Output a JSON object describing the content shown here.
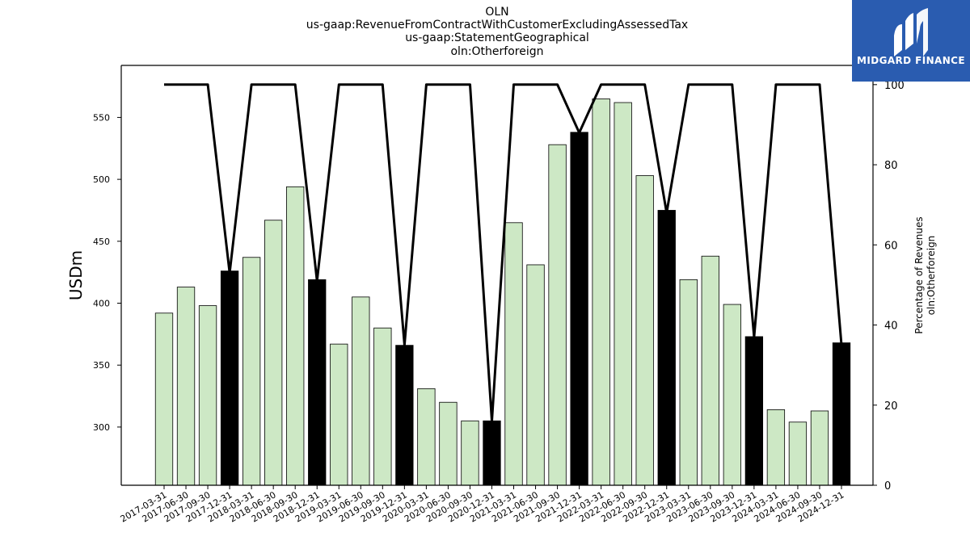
{
  "title": {
    "line1": "OLN",
    "line2": "us-gaap:RevenueFromContractWithCustomerExcludingAssessedTax",
    "line3": "us-gaap:StatementGeographical",
    "line4": "oln:Otherforeign"
  },
  "logo": {
    "text": "MIDGARD FINANCE",
    "color": "#2a5cb0"
  },
  "chart_data": {
    "type": "bar",
    "categories": [
      "2017-03-31",
      "2017-06-30",
      "2017-09-30",
      "2017-12-31",
      "2018-03-31",
      "2018-06-30",
      "2018-09-30",
      "2018-12-31",
      "2019-03-31",
      "2019-06-30",
      "2019-09-30",
      "2019-12-31",
      "2020-03-31",
      "2020-06-30",
      "2020-09-30",
      "2020-12-31",
      "2021-03-31",
      "2021-06-30",
      "2021-09-30",
      "2021-12-31",
      "2022-03-31",
      "2022-06-30",
      "2022-09-30",
      "2022-12-31",
      "2023-03-31",
      "2023-06-30",
      "2023-09-30",
      "2023-12-31",
      "2024-03-31",
      "2024-06-30",
      "2024-09-30",
      "2024-12-31"
    ],
    "series": [
      {
        "values": [
          392,
          413,
          398,
          426,
          437,
          467,
          494,
          419,
          367,
          405,
          380,
          366,
          331,
          320,
          305,
          305,
          465,
          431,
          528,
          538,
          565,
          562,
          503,
          475,
          419,
          438,
          399,
          373,
          314,
          304,
          313,
          368
        ],
        "axis": "left"
      },
      {
        "values": [
          100,
          100,
          100,
          53,
          100,
          100,
          100,
          51,
          100,
          100,
          100,
          35,
          100,
          100,
          100,
          16,
          100,
          100,
          100,
          88,
          100,
          100,
          100,
          68,
          100,
          100,
          100,
          37,
          100,
          100,
          100,
          35
        ],
        "axis": "right",
        "render": "line"
      }
    ],
    "annual_bar_indices": [
      3,
      7,
      11,
      15,
      19,
      23,
      27,
      31
    ],
    "colors": {
      "quarter_bar": "#cde8c5",
      "annual_bar": "#000000",
      "line": "#000000"
    },
    "ylabel": "USDm",
    "y2label": "Percentage of Revenues\noln:Otherforeign",
    "ylim": [
      253,
      592
    ],
    "y2lim": [
      0,
      104.8
    ],
    "yticks": [
      300,
      350,
      400,
      450,
      500,
      550
    ],
    "y2ticks": [
      0,
      20,
      40,
      60,
      80,
      100
    ],
    "grid": false
  }
}
